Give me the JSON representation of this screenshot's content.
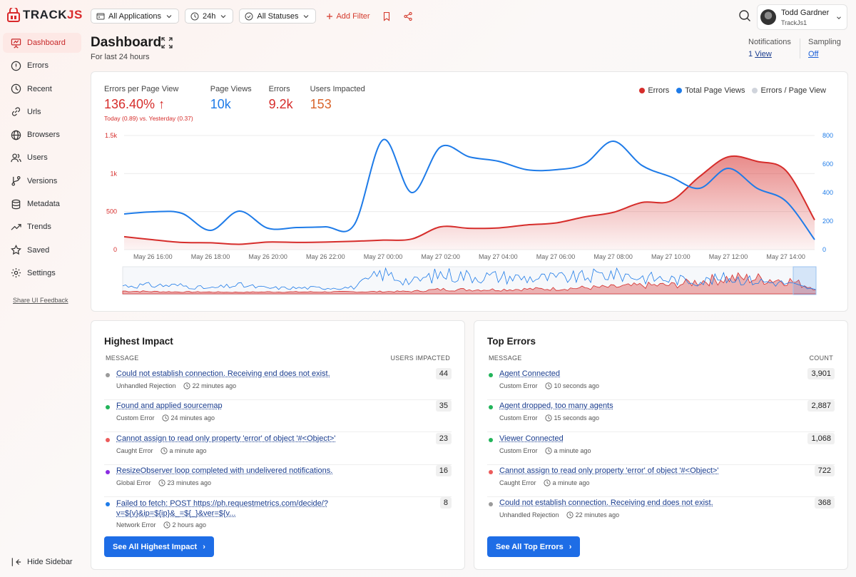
{
  "brand": {
    "name": "TRACK",
    "suffix": "JS"
  },
  "sidebar": {
    "items": [
      {
        "label": "Dashboard",
        "icon": "presentation-chart-icon",
        "active": true
      },
      {
        "label": "Errors",
        "icon": "alert-circle-icon"
      },
      {
        "label": "Recent",
        "icon": "clock-icon"
      },
      {
        "label": "Urls",
        "icon": "link-icon"
      },
      {
        "label": "Browsers",
        "icon": "globe-icon"
      },
      {
        "label": "Users",
        "icon": "users-icon"
      },
      {
        "label": "Versions",
        "icon": "git-branch-icon"
      },
      {
        "label": "Metadata",
        "icon": "database-icon"
      },
      {
        "label": "Trends",
        "icon": "trending-up-icon"
      },
      {
        "label": "Saved",
        "icon": "star-icon"
      },
      {
        "label": "Settings",
        "icon": "gear-icon"
      }
    ],
    "feedback": "Share UI Feedback",
    "hide": "Hide Sidebar"
  },
  "topbar": {
    "applications": "All Applications",
    "range": "24h",
    "statuses": "All Statuses",
    "add_filter": "Add Filter"
  },
  "user": {
    "name": "Todd Gardner",
    "org": "TrackJs1"
  },
  "header": {
    "title": "Dashboard",
    "subtitle": "For last 24 hours",
    "notifications_label": "Notifications",
    "notifications_count": "1",
    "notifications_link": "View",
    "sampling_label": "Sampling",
    "sampling_value": "Off"
  },
  "metrics": {
    "epv_label": "Errors per Page View",
    "epv_value": "136.40%",
    "epv_note": "Today (0.89) vs. Yesterday (0.37)",
    "pv_label": "Page Views",
    "pv_value": "10k",
    "errors_label": "Errors",
    "errors_value": "9.2k",
    "users_label": "Users Impacted",
    "users_value": "153"
  },
  "legend": [
    {
      "label": "Errors",
      "color": "#d62d2b"
    },
    {
      "label": "Total Page Views",
      "color": "#1e7be8"
    },
    {
      "label": "Errors / Page View",
      "color": "#d0d4dc"
    }
  ],
  "chart_data": {
    "type": "area",
    "x": [
      "May 26 15:00",
      "May 26 16:00",
      "May 26 17:00",
      "May 26 18:00",
      "May 26 19:00",
      "May 26 20:00",
      "May 26 21:00",
      "May 26 22:00",
      "May 26 23:00",
      "May 27 00:00",
      "May 27 01:00",
      "May 27 02:00",
      "May 27 03:00",
      "May 27 04:00",
      "May 27 05:00",
      "May 27 06:00",
      "May 27 07:00",
      "May 27 08:00",
      "May 27 09:00",
      "May 27 10:00",
      "May 27 11:00",
      "May 27 12:00",
      "May 27 13:00",
      "May 27 14:00",
      "May 27 14:30"
    ],
    "x_tick_labels": [
      "May 26 16:00",
      "May 26 18:00",
      "May 26 20:00",
      "May 26 22:00",
      "May 27 00:00",
      "May 27 02:00",
      "May 27 04:00",
      "May 27 06:00",
      "May 27 08:00",
      "May 27 10:00",
      "May 27 12:00",
      "May 27 14:00"
    ],
    "series": [
      {
        "name": "Errors",
        "axis": "left",
        "color": "#d62d2b",
        "values": [
          170,
          130,
          95,
          90,
          70,
          100,
          95,
          100,
          110,
          125,
          140,
          300,
          280,
          285,
          325,
          350,
          430,
          490,
          620,
          640,
          960,
          1220,
          1160,
          1040,
          390
        ]
      },
      {
        "name": "Total Page Views",
        "axis": "right",
        "color": "#1e7be8",
        "values": [
          250,
          265,
          255,
          135,
          270,
          150,
          155,
          160,
          175,
          770,
          400,
          720,
          650,
          620,
          560,
          560,
          600,
          760,
          590,
          510,
          430,
          570,
          430,
          340,
          70
        ]
      }
    ],
    "y_left": {
      "ticks": [
        "0",
        "500",
        "1k",
        "1.5k"
      ],
      "range": [
        0,
        1500
      ]
    },
    "y_right": {
      "ticks": [
        "0",
        "200",
        "400",
        "600",
        "800"
      ],
      "range": [
        0,
        800
      ]
    }
  },
  "highest_impact": {
    "title": "Highest Impact",
    "col_message": "MESSAGE",
    "col_value": "USERS IMPACTED",
    "rows": [
      {
        "message": "Could not establish connection. Receiving end does not exist.",
        "type": "Unhandled Rejection",
        "time": "22 minutes ago",
        "count": "44",
        "dot": "#9a9a9a"
      },
      {
        "message": "Found and applied sourcemap",
        "type": "Custom Error",
        "time": "24 minutes ago",
        "count": "35",
        "dot": "#22b45a"
      },
      {
        "message": "Cannot assign to read only property 'error' of object '#<Object>'",
        "type": "Caught Error",
        "time": "a minute ago",
        "count": "23",
        "dot": "#ec5b5b"
      },
      {
        "message": "ResizeObserver loop completed with undelivered notifications.",
        "type": "Global Error",
        "time": "23 minutes ago",
        "count": "16",
        "dot": "#8a2be2"
      },
      {
        "message": "Failed to fetch: POST https://ph.requestmetrics.com/decide/?v=${v}&ip=${ip}&_=${_}&ver=${v...",
        "type": "Network Error",
        "time": "2 hours ago",
        "count": "8",
        "dot": "#1e7be8"
      }
    ],
    "button": "See All Highest Impact"
  },
  "top_errors": {
    "title": "Top Errors",
    "col_message": "MESSAGE",
    "col_value": "COUNT",
    "rows": [
      {
        "message": "Agent Connected",
        "type": "Custom Error",
        "time": "10 seconds ago",
        "count": "3,901",
        "dot": "#22b45a"
      },
      {
        "message": "Agent dropped, too many agents",
        "type": "Custom Error",
        "time": "15 seconds ago",
        "count": "2,887",
        "dot": "#22b45a"
      },
      {
        "message": "Viewer Connected",
        "type": "Custom Error",
        "time": "a minute ago",
        "count": "1,068",
        "dot": "#22b45a"
      },
      {
        "message": "Cannot assign to read only property 'error' of object '#<Object>'",
        "type": "Caught Error",
        "time": "a minute ago",
        "count": "722",
        "dot": "#ec5b5b"
      },
      {
        "message": "Could not establish connection. Receiving end does not exist.",
        "type": "Unhandled Rejection",
        "time": "22 minutes ago",
        "count": "368",
        "dot": "#9a9a9a"
      }
    ],
    "button": "See All Top Errors"
  }
}
